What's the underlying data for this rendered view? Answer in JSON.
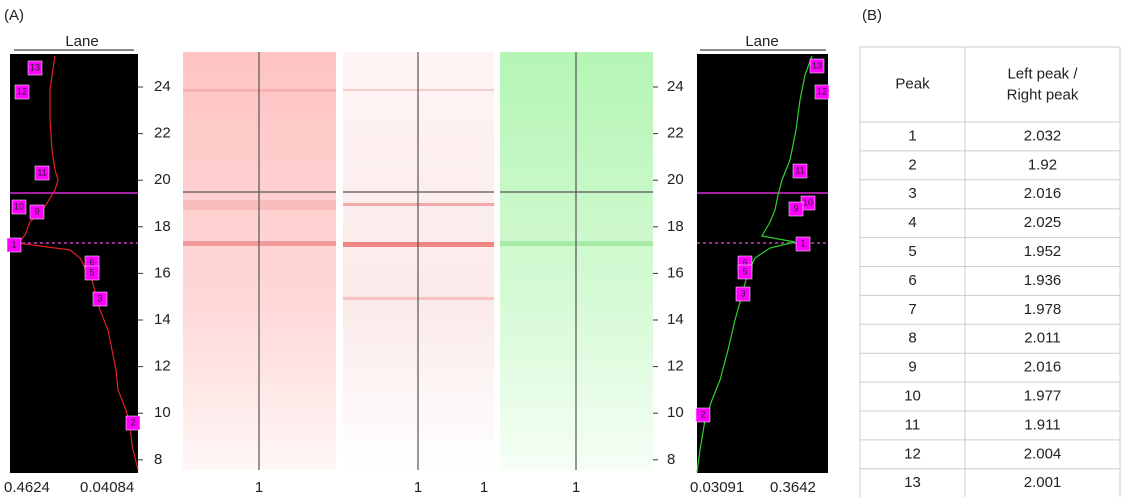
{
  "panel_a": {
    "label": "(A)",
    "left_profile": {
      "title": "Lane",
      "yticks": [
        24,
        22,
        20,
        18,
        16,
        14,
        12,
        10,
        8
      ],
      "x_labels": [
        "0.4624",
        "0.04084"
      ],
      "peaks": [
        "13",
        "12",
        "11",
        "10",
        "9",
        "1",
        "6",
        "5",
        "3",
        "2"
      ]
    },
    "gels": {
      "x_labels": [
        "1",
        "1",
        "1",
        "1"
      ]
    },
    "right_profile": {
      "title": "Lane",
      "yticks": [
        24,
        22,
        20,
        18,
        16,
        14,
        12,
        10,
        8
      ],
      "x_labels": [
        "0.03091",
        "0.3642"
      ],
      "peaks": [
        "13",
        "12",
        "11",
        "10",
        "9",
        "1",
        "6",
        "5",
        "3",
        "2"
      ]
    }
  },
  "panel_b": {
    "label": "(B)",
    "table": {
      "header": [
        "Peak",
        "Left peak / Right peak"
      ],
      "rows": [
        [
          "1",
          "2.032"
        ],
        [
          "2",
          "1.92"
        ],
        [
          "3",
          "2.016"
        ],
        [
          "4",
          "2.025"
        ],
        [
          "5",
          "1.952"
        ],
        [
          "6",
          "1.936"
        ],
        [
          "7",
          "1.978"
        ],
        [
          "8",
          "2.011"
        ],
        [
          "9",
          "2.016"
        ],
        [
          "10",
          "1.977"
        ],
        [
          "11",
          "1.911"
        ],
        [
          "12",
          "2.004"
        ],
        [
          "13",
          "2.001"
        ]
      ]
    }
  }
}
